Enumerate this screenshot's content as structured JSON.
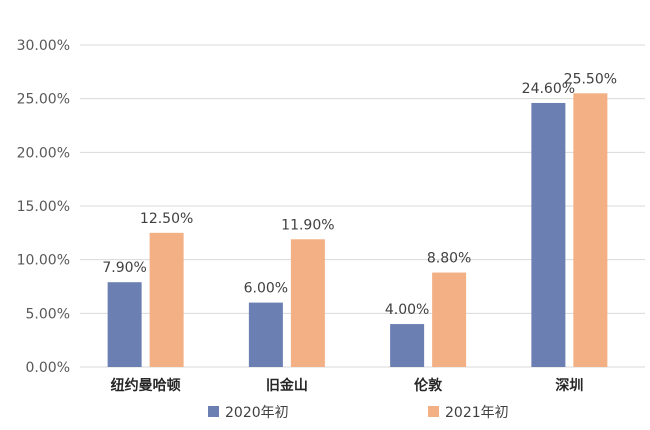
{
  "chart_data": {
    "type": "bar",
    "title": "",
    "xlabel": "",
    "ylabel": "",
    "categories": [
      "纽约曼哈顿",
      "旧金山",
      "伦敦",
      "深圳"
    ],
    "series": [
      {
        "name": "2020年初",
        "values": [
          7.9,
          6.0,
          4.0,
          24.6
        ],
        "labels": [
          "7.90%",
          "6.00%",
          "4.00%",
          "24.60%"
        ],
        "color": "#6b7fb3"
      },
      {
        "name": "2021年初",
        "values": [
          12.5,
          11.9,
          8.8,
          25.5
        ],
        "labels": [
          "12.50%",
          "11.90%",
          "8.80%",
          "25.50%"
        ],
        "color": "#f2b084"
      }
    ],
    "ylim": [
      0,
      30
    ],
    "yticks": [
      "0.00%",
      "5.00%",
      "10.00%",
      "15.00%",
      "20.00%",
      "25.00%",
      "30.00%"
    ],
    "grid": true,
    "legend_position": "bottom",
    "gridline_color": "#d9d9d9"
  }
}
